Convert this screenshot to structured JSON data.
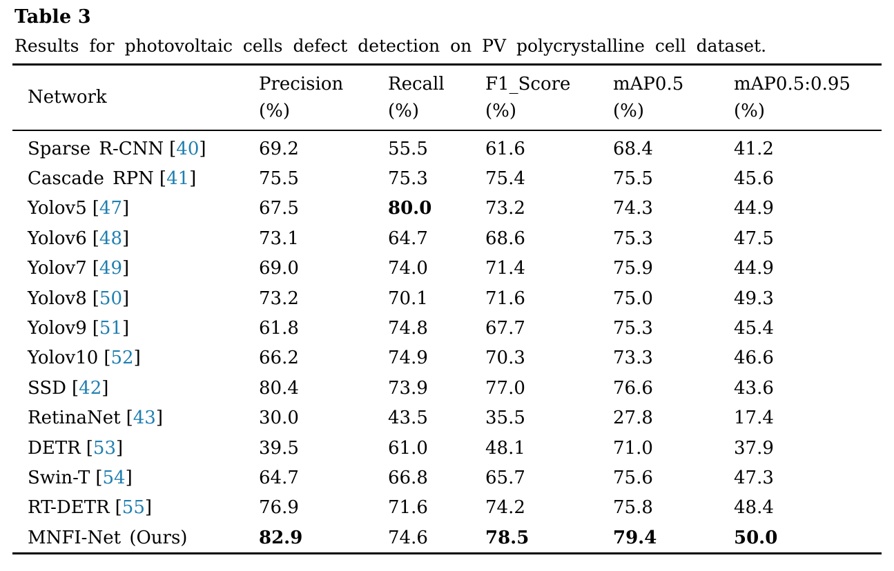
{
  "table": {
    "label": "Table 3",
    "caption": "Results for photovoltaic cells defect detection on PV polycrystalline cell dataset.",
    "columns": [
      {
        "key": "network",
        "name": "Network",
        "unit": ""
      },
      {
        "key": "precision",
        "name": "Precision",
        "unit": "(%)"
      },
      {
        "key": "recall",
        "name": "Recall",
        "unit": "(%)"
      },
      {
        "key": "f1_score",
        "name": "F1_Score",
        "unit": "(%)"
      },
      {
        "key": "map50",
        "name": "mAP0.5",
        "unit": "(%)"
      },
      {
        "key": "map50_95",
        "name": "mAP0.5:0.95",
        "unit": "(%)"
      }
    ],
    "rows": [
      {
        "network": "Sparse R-CNN",
        "ref": "40",
        "values": [
          "69.2",
          "55.5",
          "61.6",
          "68.4",
          "41.2"
        ],
        "bold_cols": []
      },
      {
        "network": "Cascade RPN",
        "ref": "41",
        "values": [
          "75.5",
          "75.3",
          "75.4",
          "75.5",
          "45.6"
        ],
        "bold_cols": []
      },
      {
        "network": "Yolov5",
        "ref": "47",
        "values": [
          "67.5",
          "80.0",
          "73.2",
          "74.3",
          "44.9"
        ],
        "bold_cols": [
          1
        ]
      },
      {
        "network": "Yolov6",
        "ref": "48",
        "values": [
          "73.1",
          "64.7",
          "68.6",
          "75.3",
          "47.5"
        ],
        "bold_cols": []
      },
      {
        "network": "Yolov7",
        "ref": "49",
        "values": [
          "69.0",
          "74.0",
          "71.4",
          "75.9",
          "44.9"
        ],
        "bold_cols": []
      },
      {
        "network": "Yolov8",
        "ref": "50",
        "values": [
          "73.2",
          "70.1",
          "71.6",
          "75.0",
          "49.3"
        ],
        "bold_cols": []
      },
      {
        "network": "Yolov9",
        "ref": "51",
        "values": [
          "61.8",
          "74.8",
          "67.7",
          "75.3",
          "45.4"
        ],
        "bold_cols": []
      },
      {
        "network": "Yolov10",
        "ref": "52",
        "values": [
          "66.2",
          "74.9",
          "70.3",
          "73.3",
          "46.6"
        ],
        "bold_cols": []
      },
      {
        "network": "SSD",
        "ref": "42",
        "values": [
          "80.4",
          "73.9",
          "77.0",
          "76.6",
          "43.6"
        ],
        "bold_cols": []
      },
      {
        "network": "RetinaNet",
        "ref": "43",
        "values": [
          "30.0",
          "43.5",
          "35.5",
          "27.8",
          "17.4"
        ],
        "bold_cols": []
      },
      {
        "network": "DETR",
        "ref": "53",
        "values": [
          "39.5",
          "61.0",
          "48.1",
          "71.0",
          "37.9"
        ],
        "bold_cols": []
      },
      {
        "network": "Swin-T",
        "ref": "54",
        "values": [
          "64.7",
          "66.8",
          "65.7",
          "75.6",
          "47.3"
        ],
        "bold_cols": []
      },
      {
        "network": "RT-DETR",
        "ref": "55",
        "values": [
          "76.9",
          "71.6",
          "74.2",
          "75.8",
          "48.4"
        ],
        "bold_cols": []
      },
      {
        "network": "MNFI-Net (Ours)",
        "ref": null,
        "values": [
          "82.9",
          "74.6",
          "78.5",
          "79.4",
          "50.0"
        ],
        "bold_cols": [
          0,
          2,
          3,
          4
        ]
      }
    ]
  },
  "colors": {
    "citation_link": "#1f7fb0",
    "text": "#000000",
    "background": "#ffffff",
    "rule": "#000000"
  }
}
